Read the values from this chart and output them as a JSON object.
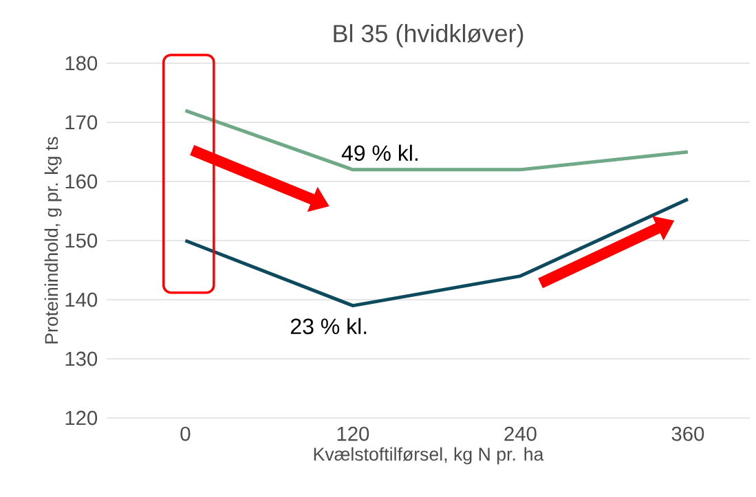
{
  "chart_data": {
    "type": "line",
    "title": "Bl 35 (hvidkløver)",
    "xlabel": "Kvælstoftilførsel, kg N pr. ha",
    "ylabel": "Proteinindhold, g pr. kg ts",
    "categories": [
      "0",
      "120",
      "240",
      "360"
    ],
    "series": [
      {
        "name": "49 % kl.",
        "color": "#6fa987",
        "values": [
          172,
          162,
          162,
          165
        ]
      },
      {
        "name": "23 % kl.",
        "color": "#0d4a5e",
        "values": [
          150,
          139,
          144,
          157
        ]
      }
    ],
    "ylim": [
      120,
      180
    ],
    "yticks": [
      120,
      130,
      140,
      150,
      160,
      170,
      180
    ],
    "grid": "y",
    "marker": "none",
    "line_style": "solid"
  }
}
